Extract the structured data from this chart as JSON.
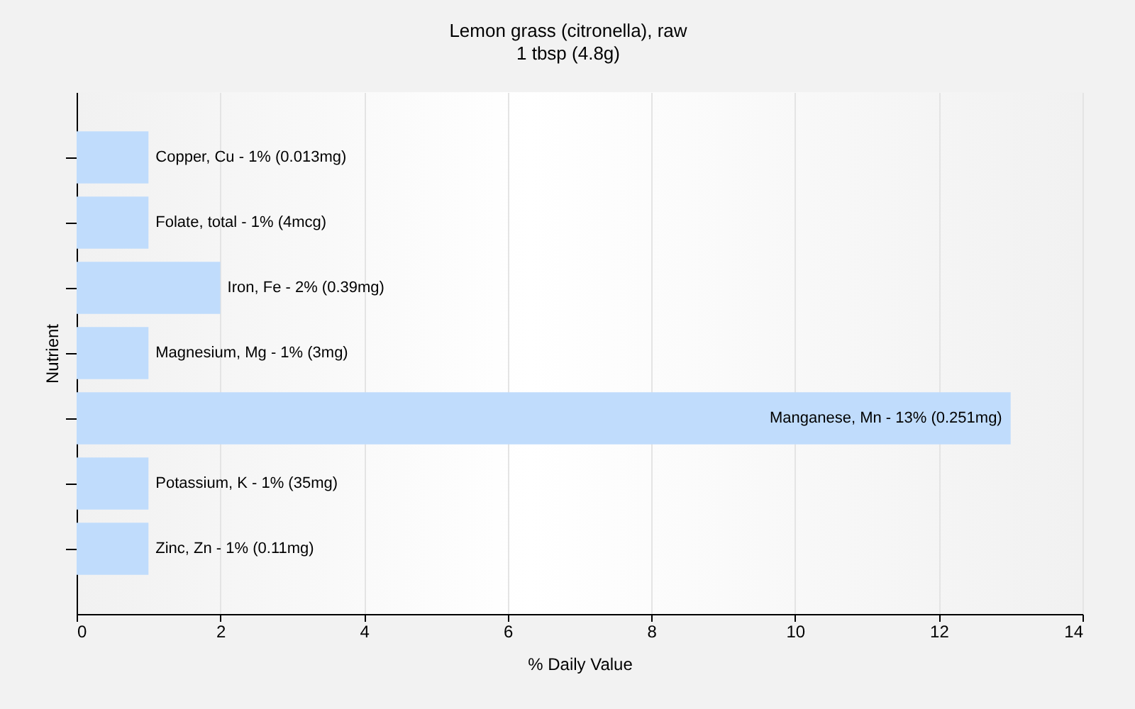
{
  "chart_data": {
    "type": "bar",
    "orientation": "horizontal",
    "title": "Lemon grass (citronella), raw",
    "subtitle": "1 tbsp (4.8g)",
    "xlabel": "% Daily Value",
    "ylabel": "Nutrient",
    "categories": [
      "Copper, Cu - 1% (0.013mg)",
      "Folate, total - 1% (4mcg)",
      "Iron, Fe - 2% (0.39mg)",
      "Magnesium, Mg - 1% (3mg)",
      "Manganese, Mn - 13% (0.251mg)",
      "Potassium, K - 1% (35mg)",
      "Zinc, Zn - 1% (0.11mg)"
    ],
    "values": [
      1,
      1,
      2,
      1,
      13,
      1,
      1
    ],
    "color": "#c0dcfc",
    "xlim": [
      0,
      14
    ],
    "xticks": [
      0,
      2,
      4,
      6,
      8,
      10,
      12,
      14
    ],
    "grid": "x"
  }
}
